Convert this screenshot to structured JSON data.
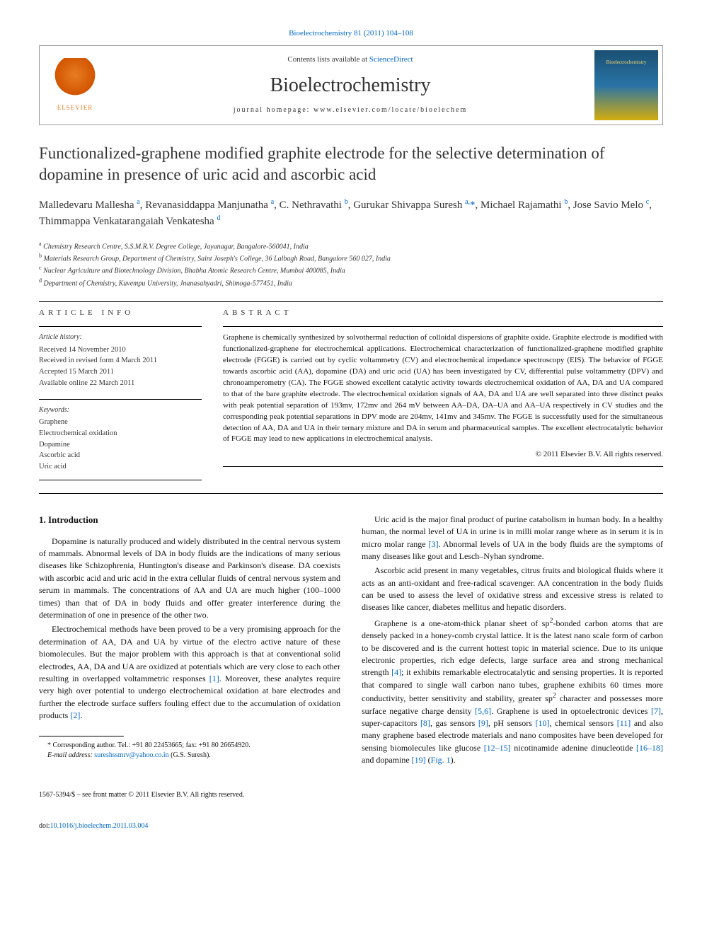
{
  "journal_ref": "Bioelectrochemistry 81 (2011) 104–108",
  "header": {
    "elsevier_label": "ELSEVIER",
    "contents_line_prefix": "Contents lists available at ",
    "contents_link": "ScienceDirect",
    "journal_title": "Bioelectrochemistry",
    "homepage_prefix": "journal homepage: ",
    "homepage_url": "www.elsevier.com/locate/bioelechem"
  },
  "title": "Functionalized-graphene modified graphite electrode for the selective determination of dopamine in presence of uric acid and ascorbic acid",
  "authors_html": "Malledevaru Mallesha <sup>a</sup>, Revanasiddappa Manjunatha <sup>a</sup>, C. Nethravathi <sup>b</sup>, Gurukar Shivappa Suresh <sup>a,</sup><span class='star'>*</span>, Michael Rajamathi <sup>b</sup>, Jose Savio Melo <sup>c</sup>, Thimmappa Venkatarangaiah Venkatesha <sup>d</sup>",
  "affiliations": [
    "<sup>a</sup> Chemistry Research Centre, S.S.M.R.V. Degree College, Jayanagar, Bangalore-560041, India",
    "<sup>b</sup> Materials Research Group, Department of Chemistry, Saint Joseph's College, 36 Lalbagh Road, Bangalore 560 027, India",
    "<sup>c</sup> Nuclear Agriculture and Biotechnology Division, Bhabha Atomic Research Centre, Mumbai 400085, India",
    "<sup>d</sup> Department of Chemistry, Kuvempu University, Jnanasahyadri, Shimoga-577451, India"
  ],
  "article_info": {
    "header": "ARTICLE INFO",
    "history_label": "Article history:",
    "history": [
      "Received 14 November 2010",
      "Received in revised form 4 March 2011",
      "Accepted 15 March 2011",
      "Available online 22 March 2011"
    ],
    "keywords_label": "Keywords:",
    "keywords": [
      "Graphene",
      "Electrochemical oxidation",
      "Dopamine",
      "Ascorbic acid",
      "Uric acid"
    ]
  },
  "abstract": {
    "header": "ABSTRACT",
    "text": "Graphene is chemically synthesized by solvothermal reduction of colloidal dispersions of graphite oxide. Graphite electrode is modified with functionalized-graphene for electrochemical applications. Electrochemical characterization of functionalized-graphene modified graphite electrode (FGGE) is carried out by cyclic voltammetry (CV) and electrochemical impedance spectroscopy (EIS). The behavior of FGGE towards ascorbic acid (AA), dopamine (DA) and uric acid (UA) has been investigated by CV, differential pulse voltammetry (DPV) and chronoamperometry (CA). The FGGE showed excellent catalytic activity towards electrochemical oxidation of AA, DA and UA compared to that of the bare graphite electrode. The electrochemical oxidation signals of AA, DA and UA are well separated into three distinct peaks with peak potential separation of 193mv, 172mv and 264 mV between AA–DA, DA–UA and AA–UA respectively in CV studies and the corresponding peak potential separations in DPV mode are 204mv, 141mv and 345mv. The FGGE is successfully used for the simultaneous detection of AA, DA and UA in their ternary mixture and DA in serum and pharmaceutical samples. The excellent electrocatalytic behavior of FGGE may lead to new applications in electrochemical analysis.",
    "copyright": "© 2011 Elsevier B.V. All rights reserved."
  },
  "body": {
    "intro_heading": "1. Introduction",
    "left_paras": [
      "Dopamine is naturally produced and widely distributed in the central nervous system of mammals. Abnormal levels of DA in body fluids are the indications of many serious diseases like Schizophrenia, Huntington's disease and Parkinson's disease. DA coexists with ascorbic acid and uric acid in the extra cellular fluids of central nervous system and serum in mammals. The concentrations of AA and UA are much higher (100–1000 times) than that of DA in body fluids and offer greater interference during the determination of one in presence of the other two.",
      "Electrochemical methods have been proved to be a very promising approach for the determination of AA, DA and UA by virtue of the electro active nature of these biomolecules. But the major problem with this approach is that at conventional solid electrodes, AA, DA and UA are oxidized at potentials which are very close to each other resulting in overlapped voltammetric responses <span class='ref'>[1]</span>. Moreover, these analytes require very high over potential to undergo electrochemical oxidation at bare electrodes and further the electrode surface suffers fouling effect due to the accumulation of oxidation products <span class='ref'>[2]</span>."
    ],
    "right_paras": [
      "Uric acid is the major final product of purine catabolism in human body. In a healthy human, the normal level of UA in urine is in milli molar range where as in serum it is in micro molar range <span class='ref'>[3]</span>. Abnormal levels of UA in the body fluids are the symptoms of many diseases like gout and Lesch–Nyhan syndrome.",
      "Ascorbic acid present in many vegetables, citrus fruits and biological fluids where it acts as an anti-oxidant and free-radical scavenger. AA concentration in the body fluids can be used to assess the level of oxidative stress and excessive stress is related to diseases like cancer, diabetes mellitus and hepatic disorders.",
      "Graphene is a one-atom-thick planar sheet of sp<sup>2</sup>-bonded carbon atoms that are densely packed in a honey-comb crystal lattice. It is the latest nano scale form of carbon to be discovered and is the current hottest topic in material science. Due to its unique electronic properties, rich edge defects, large surface area and strong mechanical strength <span class='ref'>[4]</span>; it exhibits remarkable electrocatalytic and sensing properties. It is reported that compared to single wall carbon nano tubes, graphene exhibits 60 times more conductivity, better sensitivity and stability, greater sp<sup>2</sup> character and possesses more surface negative charge density <span class='ref'>[5,6]</span>. Graphene is used in optoelectronic devices <span class='ref'>[7]</span>, super-capacitors <span class='ref'>[8]</span>, gas sensors <span class='ref'>[9]</span>, pH sensors <span class='ref'>[10]</span>, chemical sensors <span class='ref'>[11]</span> and also many graphene based electrode materials and nano composites have been developed for sensing biomolecules like glucose <span class='ref'>[12–15]</span> nicotinamide adenine dinucleotide <span class='ref'>[16–18]</span> and dopamine <span class='ref'>[19]</span> (<span class='ref'>Fig. 1</span>)."
    ]
  },
  "footnote": {
    "corresponding": "* Corresponding author. Tel.: +91 80 22453665; fax: +91 80 26654920.",
    "email_label": "E-mail address: ",
    "email": "sureshssmrv@yahoo.co.in",
    "email_suffix": " (G.S. Suresh)."
  },
  "footer": {
    "front_matter": "1567-5394/$ – see front matter © 2011 Elsevier B.V. All rights reserved.",
    "doi_prefix": "doi:",
    "doi": "10.1016/j.bioelechem.2011.03.004"
  },
  "colors": {
    "link": "#0066cc",
    "text": "#111111",
    "border": "#999999",
    "elsevier_orange": "#e67e22"
  }
}
